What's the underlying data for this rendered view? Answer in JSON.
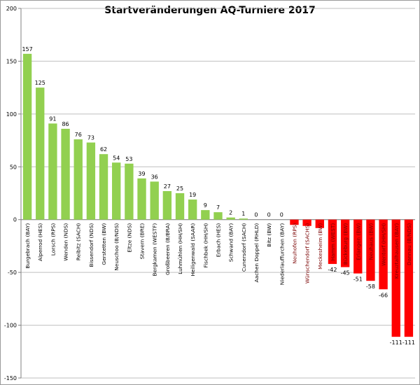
{
  "chart_data": {
    "type": "bar",
    "title": "Startveränderungen AQ-Turniere 2017",
    "xlabel": "",
    "ylabel": "",
    "ylim": [
      -150,
      200
    ],
    "yticks": [
      -150,
      -100,
      -50,
      0,
      50,
      100,
      150,
      200
    ],
    "grid": true,
    "legend": "none",
    "colors": {
      "positive": "#92d050",
      "negative": "#ff0000",
      "grid": "#bfbfbf",
      "axis": "#808080"
    },
    "categories": [
      "Burgebrach (BAY)",
      "Alperrod (HES)",
      "Lorsch (RPS)",
      "Wenden (NDS)",
      "Reibitz (SACH)",
      "Bissendorf (NDS)",
      "Gerstetten (BW)",
      "Neuschoo (B/NDS)",
      "Eltze (NDS)",
      "Stavern (BRE)",
      "Bergkamen (WESTF)",
      "Großbeeren (B/BRA)",
      "Luhmühlen (HH/SH)",
      "Heiligenwald (SAAR)",
      "Fischbek (HH/SH)",
      "Erbach (HES)",
      "Schwand (BAY)",
      "Cunersdorf (SACH)",
      "Aachen Doppel (RHLD)",
      "Bitz (BW)",
      "Niederlauffurchen (BAY)",
      "Neuhofen (RPS)",
      "Wünschendorf (SACHS)",
      "Meckesheim (BW)",
      "Hamm (WEST)",
      "Bückeburg (BW)",
      "Erlangen (BW)",
      "Neuhaus (BW)",
      "Wentorf (HH/SH)",
      "Kreuztalhausen (BAY)",
      "Dannau (B/NDS)"
    ],
    "values": [
      157,
      125,
      91,
      86,
      76,
      73,
      62,
      54,
      53,
      39,
      36,
      27,
      25,
      19,
      9,
      7,
      2,
      1,
      0,
      0,
      0,
      -5,
      -6,
      -8,
      -42,
      -45,
      -51,
      -58,
      -66,
      -111,
      -111
    ],
    "value_labels": [
      "157",
      "125",
      "91",
      "86",
      "76",
      "73",
      "62",
      "54",
      "53",
      "39",
      "36",
      "27",
      "25",
      "19",
      "9",
      "7",
      "2",
      "1",
      "0",
      "0",
      "0",
      "",
      "",
      "",
      "-42",
      "-45",
      "-51",
      "-58",
      "-66",
      "-111",
      "-111"
    ]
  }
}
